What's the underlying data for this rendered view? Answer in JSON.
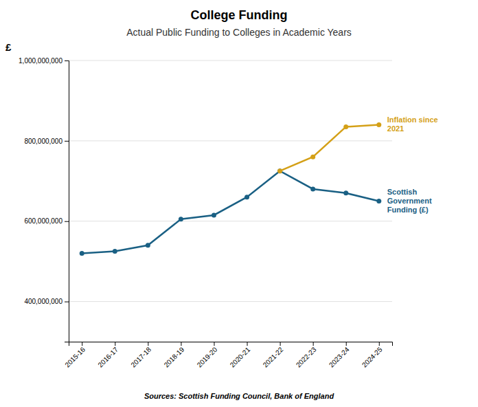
{
  "chart_data": {
    "type": "line",
    "title": "College Funding",
    "subtitle": "Actual Public Funding to Colleges in Academic Years",
    "ylabel": "£",
    "annotations": [
      "Sources: Scottish Funding Council, Bank of England"
    ],
    "categories": [
      "2015-16",
      "2016-17",
      "2017-18",
      "2018-19",
      "2019-20",
      "2020-21",
      "2021-22",
      "2022-23",
      "2023-24",
      "2024-25"
    ],
    "series": [
      {
        "name": "Scottish\nGovernment\nFunding (£)",
        "color": "#1a6084",
        "values": [
          520000000,
          525000000,
          540000000,
          605000000,
          615000000,
          660000000,
          725000000,
          680000000,
          670000000,
          650000000
        ]
      },
      {
        "name": "Inflation since\n2021",
        "color": "#d4a017",
        "values": [
          null,
          null,
          null,
          null,
          null,
          null,
          725000000,
          760000000,
          835000000,
          840000000
        ]
      }
    ],
    "ylim": [
      300000000,
      1000000000
    ],
    "yticks": [
      {
        "value": 400000000,
        "label": "400,000,000"
      },
      {
        "value": 600000000,
        "label": "600,000,000"
      },
      {
        "value": 800000000,
        "label": "800,000,000"
      },
      {
        "value": 1000000000,
        "label": "1,000,000,000"
      }
    ],
    "grid": true,
    "marker": "circle"
  }
}
